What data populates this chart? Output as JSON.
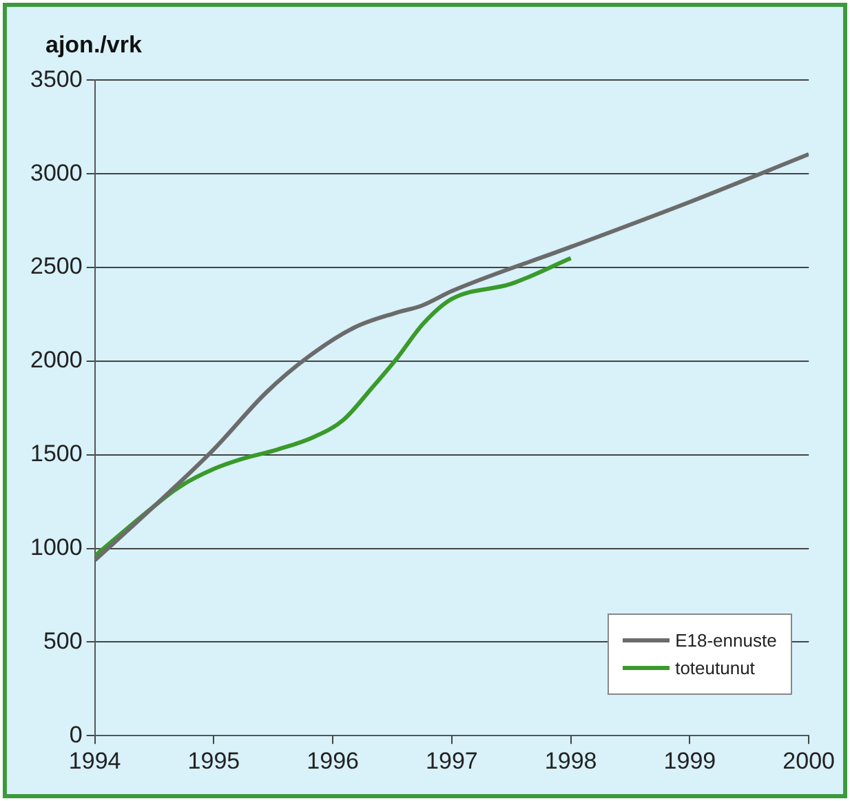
{
  "chart_data": {
    "type": "line",
    "ylabel": "ajon./vrk",
    "xlim": [
      1994,
      2000
    ],
    "xticks": [
      1994,
      1995,
      1996,
      1997,
      1998,
      1999,
      2000
    ],
    "ylim": [
      0,
      3500
    ],
    "yticks": [
      0,
      500,
      1000,
      1500,
      2000,
      2500,
      3000,
      3500
    ],
    "grid": "y",
    "legend": "bottom right",
    "series": [
      {
        "name": "E18-ennuste",
        "color": "#6b6b6b",
        "x": [
          1994,
          1994.5,
          1995,
          1995.44,
          1995.79,
          1996.18,
          1996.53,
          1996.75,
          1997,
          1998,
          1999,
          2000
        ],
        "values": [
          937,
          1226,
          1529,
          1832,
          2021,
          2179,
          2258,
          2297,
          2374,
          2610,
          2850,
          3105
        ]
      },
      {
        "name": "toteutunut",
        "color": "#3a9a2a",
        "x": [
          1994,
          1994.5,
          1994.72,
          1995,
          1995.23,
          1995.54,
          1995.84,
          1996.09,
          1996.33,
          1996.54,
          1996.76,
          1997,
          1997.5,
          1998
        ],
        "values": [
          960,
          1226,
          1332,
          1424,
          1476,
          1529,
          1595,
          1687,
          1858,
          2016,
          2200,
          2332,
          2413,
          2550
        ]
      }
    ]
  }
}
